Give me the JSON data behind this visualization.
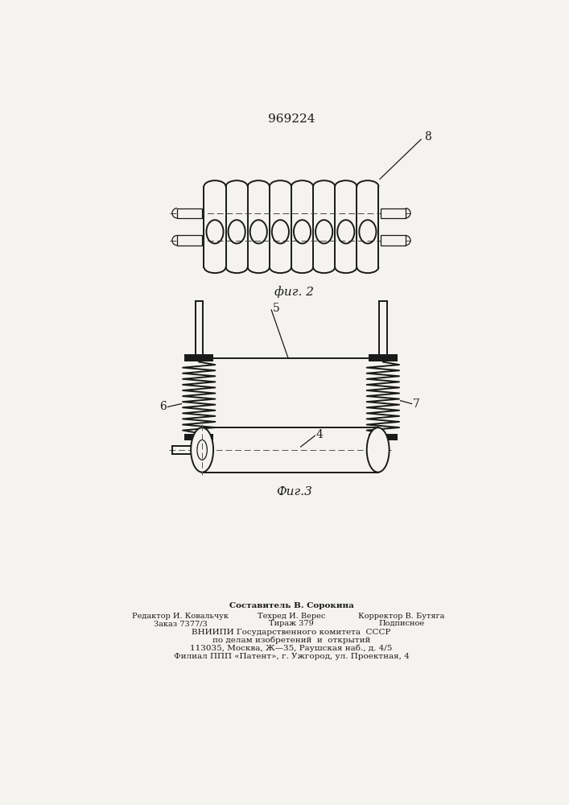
{
  "title": "969224",
  "fig2_label": "фиг. 2",
  "fig3_label": "Фиг.3",
  "label_8": "8",
  "label_5": "5",
  "label_6": "6",
  "label_7": "7",
  "label_4": "4",
  "footer_line1": "Составитель В. Сорокина",
  "footer_col1_line1": "Редактор И. Ковальчук",
  "footer_col2_line1": "Техред И. Верес",
  "footer_col3_line1": "Корректор В. Бутяга",
  "footer_col1_line2": "Заказ 7377/3",
  "footer_col2_line2": "Тираж 379",
  "footer_col3_line2": "Подписное",
  "footer_line4": "ВНИИПИ Государственного комитета  СССР",
  "footer_line5": "по делам изобретений  и  открытий",
  "footer_line6": "113035, Москва, Ж—35, Раушская наб., д. 4/5",
  "footer_line7": "Филиал ППП «Патент», г. Ужгород, ул. Проектная, 4",
  "bg_color": "#f5f3ef",
  "line_color": "#1a1a1a",
  "line_width": 1.4
}
